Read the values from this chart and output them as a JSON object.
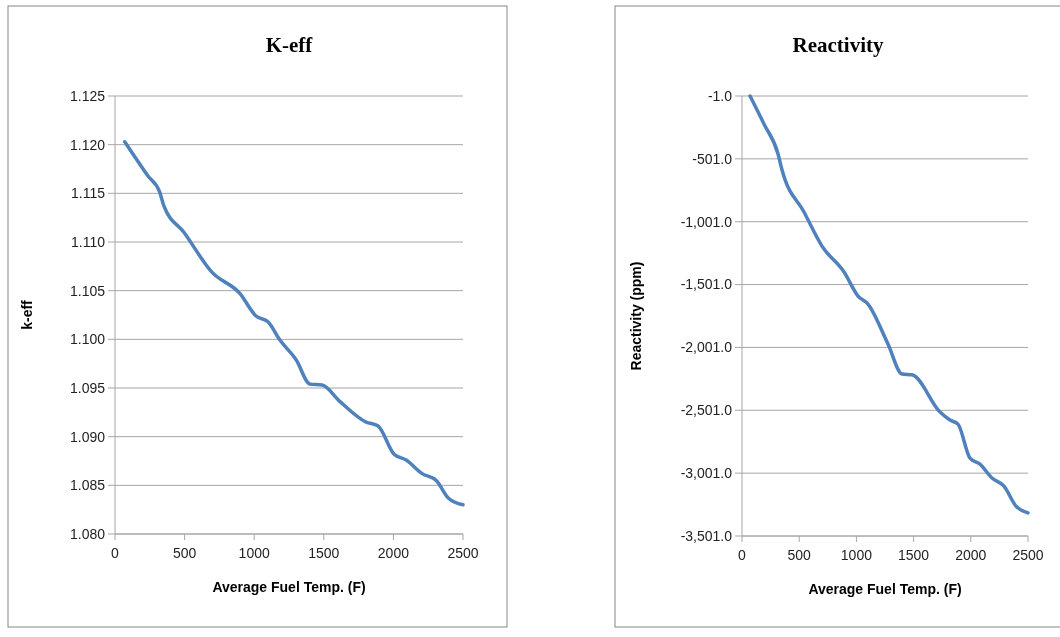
{
  "chart_data": [
    {
      "type": "line",
      "title": "K-eff",
      "xlabel": "Average Fuel Temp. (F)",
      "ylabel": "k-eff",
      "xlim": [
        0,
        2500
      ],
      "xticks": [
        0,
        500,
        1000,
        1500,
        2000,
        2500
      ],
      "ylim": [
        1.08,
        1.125
      ],
      "yticks": [
        {
          "value": 1.08,
          "label": "1.080"
        },
        {
          "value": 1.085,
          "label": "1.085"
        },
        {
          "value": 1.09,
          "label": "1.090"
        },
        {
          "value": 1.095,
          "label": "1.095"
        },
        {
          "value": 1.1,
          "label": "1.100"
        },
        {
          "value": 1.105,
          "label": "1.105"
        },
        {
          "value": 1.11,
          "label": "1.110"
        },
        {
          "value": 1.115,
          "label": "1.115"
        },
        {
          "value": 1.12,
          "label": "1.120"
        },
        {
          "value": 1.125,
          "label": "1.125"
        }
      ],
      "grid": "y",
      "series": [
        {
          "color": "#4f81bd",
          "x": [
            70,
            236,
            322,
            351,
            495,
            696,
            898,
            1013,
            1099,
            1186,
            1301,
            1401,
            1488,
            1617,
            1804,
            1890,
            2005,
            2092,
            2207,
            2308,
            2394,
            2500
          ],
          "values": [
            1.1203,
            1.1168,
            1.1151,
            1.1137,
            1.111,
            1.1069,
            1.1047,
            1.1024,
            1.1018,
            1.0999,
            1.0979,
            1.0954,
            1.0953,
            1.0936,
            1.0915,
            1.0911,
            1.0882,
            1.0876,
            1.0862,
            1.0855,
            1.0837,
            1.083
          ]
        }
      ]
    },
    {
      "type": "line",
      "title": "Reactivity",
      "xlabel": "Average Fuel Temp. (F)",
      "ylabel": "Reactivity (ppm)",
      "xlim": [
        0,
        2500
      ],
      "xticks": [
        0,
        500,
        1000,
        1500,
        2000,
        2500
      ],
      "ylim": [
        -3501,
        -1
      ],
      "yticks": [
        {
          "value": -3501,
          "label": "-3,501.0"
        },
        {
          "value": -3001,
          "label": "-3,001.0"
        },
        {
          "value": -2501,
          "label": "-2,501.0"
        },
        {
          "value": -2001,
          "label": "-2,001.0"
        },
        {
          "value": -1501,
          "label": "-1,501.0"
        },
        {
          "value": -1001,
          "label": "-1,001.0"
        },
        {
          "value": -501,
          "label": "-501.0"
        },
        {
          "value": -1,
          "label": "-1.0"
        }
      ],
      "grid": "y",
      "series": [
        {
          "color": "#4f81bd",
          "x": [
            70,
            192,
            315,
            350,
            542,
            699,
            892,
            1014,
            1101,
            1276,
            1399,
            1486,
            1731,
            1818,
            1888,
            1993,
            2080,
            2185,
            2290,
            2395,
            2500
          ],
          "values": [
            -1,
            -224,
            -462,
            -590,
            -924,
            -1195,
            -1401,
            -1592,
            -1656,
            -1974,
            -2213,
            -2219,
            -2515,
            -2579,
            -2611,
            -2881,
            -2929,
            -3040,
            -3104,
            -3263,
            -3317
          ]
        }
      ]
    }
  ]
}
